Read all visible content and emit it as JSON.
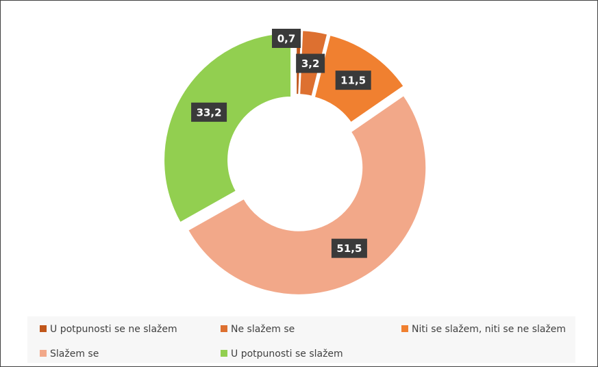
{
  "chart_data": {
    "type": "donut",
    "categories": [
      "U potpunosti se ne slažem",
      "Ne slažem se",
      "Niti se slažem, niti se ne slažem",
      "Slažem se",
      "U potpunosti se slažem"
    ],
    "values": [
      0.7,
      3.2,
      11.5,
      51.5,
      33.2
    ],
    "value_labels": [
      "0,7",
      "3,2",
      "11,5",
      "51,5",
      "33,2"
    ],
    "colors": [
      "#c0561a",
      "#dd7030",
      "#f08030",
      "#f2a889",
      "#92cf50"
    ],
    "legend": "bottom"
  }
}
